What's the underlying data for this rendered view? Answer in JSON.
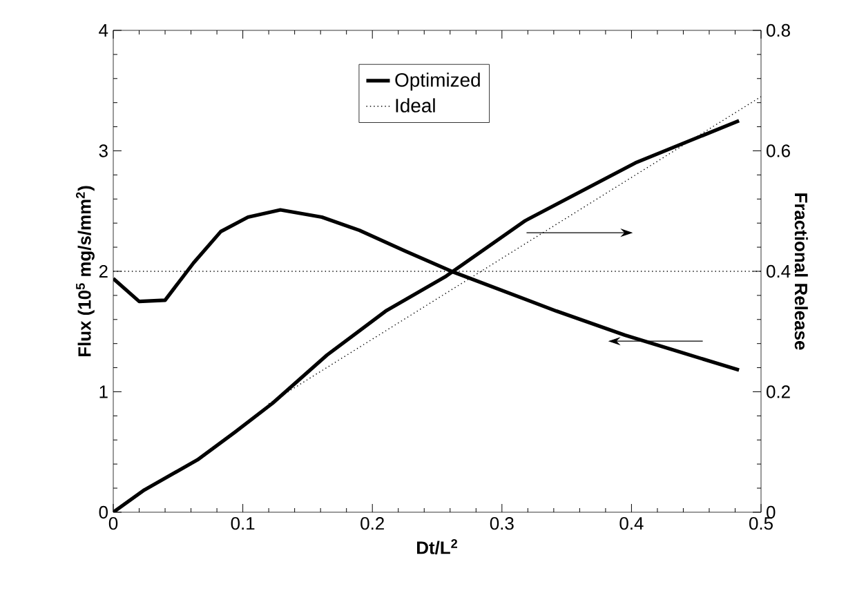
{
  "chart_data": {
    "type": "line",
    "xlabel": "Dt/L$^{2}$",
    "ylabel": "Flux  (10$^{5}$ mg/s/mm$^{2}$)",
    "y2label": "Fractional  Release",
    "xlim": [
      0,
      0.5
    ],
    "xticks": [
      0,
      0.1,
      0.2,
      0.3,
      0.4,
      0.5
    ],
    "ylim": [
      0,
      4
    ],
    "yticks": [
      0,
      1,
      2,
      3,
      4
    ],
    "y2lim": [
      0,
      0.8
    ],
    "y2ticks": [
      0,
      0.2,
      0.4,
      0.6,
      0.8
    ],
    "legend": "top",
    "ref_lines": [
      {
        "axis": "y",
        "value": 2,
        "line_style": "dotted",
        "color": "#000000"
      }
    ],
    "series": [
      {
        "name": "Optimized",
        "color": "#000000",
        "line_style": "solid",
        "x": [
          0,
          0.02,
          0.04,
          0.062,
          0.083,
          0.104,
          0.129,
          0.161,
          0.19,
          0.225,
          0.261,
          0.342,
          0.395,
          0.483
        ],
        "values": [
          1.94,
          1.75,
          1.76,
          2.07,
          2.33,
          2.45,
          2.51,
          2.45,
          2.34,
          2.17,
          2.0,
          1.67,
          1.47,
          1.18
        ]
      },
      {
        "color": "#000000",
        "line_style": "solid",
        "axis": "y2",
        "x": [
          0,
          0.024,
          0.065,
          0.094,
          0.123,
          0.165,
          0.211,
          0.257,
          0.318,
          0.403,
          0.483
        ],
        "values": [
          0,
          0.037,
          0.087,
          0.133,
          0.181,
          0.261,
          0.335,
          0.392,
          0.484,
          0.58,
          0.65
        ]
      },
      {
        "name": "Ideal",
        "color": "#000000",
        "line_style": "dotted",
        "axis": "y2",
        "x": [
          0.12,
          0.5
        ],
        "values": [
          0.18,
          0.69
        ]
      }
    ]
  }
}
